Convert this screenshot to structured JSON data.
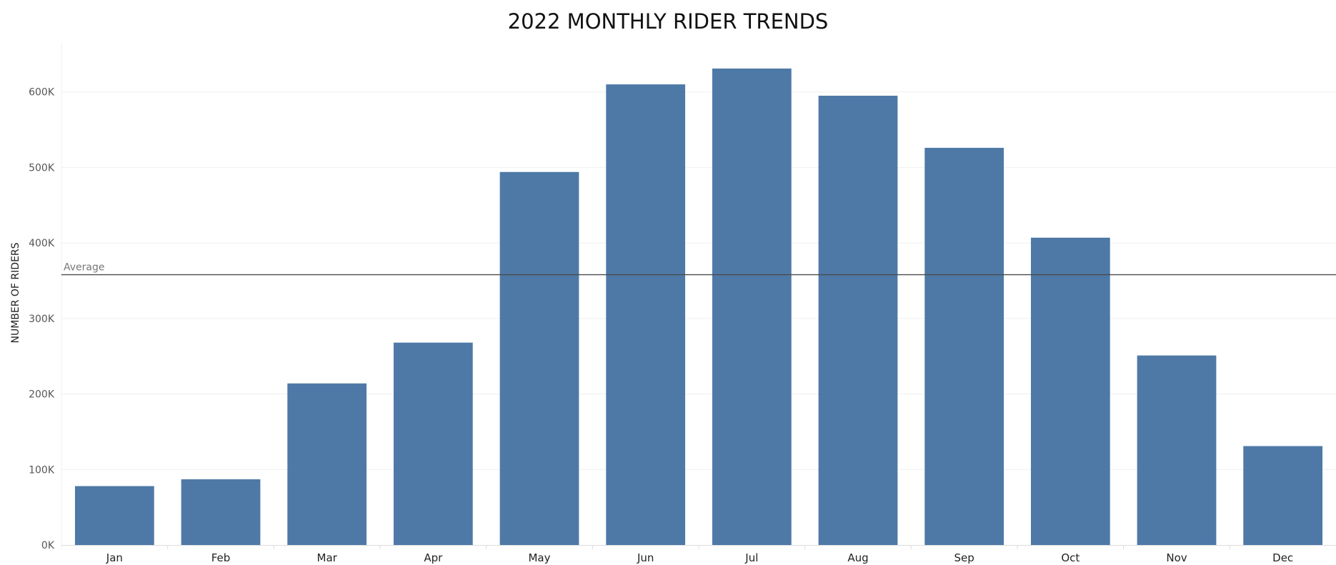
{
  "colors": {
    "bar": "#4E79A7",
    "gridline": "#EFEFEF",
    "axis": "#DDDDDD",
    "reference_line": "#4A4A4A"
  },
  "chart_data": {
    "type": "bar",
    "title": "2022 MONTHLY RIDER TRENDS",
    "xlabel": "",
    "ylabel": "NUMBER OF RIDERS",
    "categories": [
      "Jan",
      "Feb",
      "Mar",
      "Apr",
      "May",
      "Jun",
      "Jul",
      "Aug",
      "Sep",
      "Oct",
      "Nov",
      "Dec"
    ],
    "values": [
      78000,
      87000,
      214000,
      268000,
      494000,
      610000,
      631000,
      595000,
      526000,
      407000,
      251000,
      131000
    ],
    "ylim": [
      0,
      665000
    ],
    "y_ticks": [
      0,
      100000,
      200000,
      300000,
      400000,
      500000,
      600000
    ],
    "y_tick_labels": [
      "0K",
      "100K",
      "200K",
      "300K",
      "400K",
      "500K",
      "600K"
    ],
    "grid": true,
    "reference_line": {
      "label": "Average",
      "value": 358000
    }
  }
}
